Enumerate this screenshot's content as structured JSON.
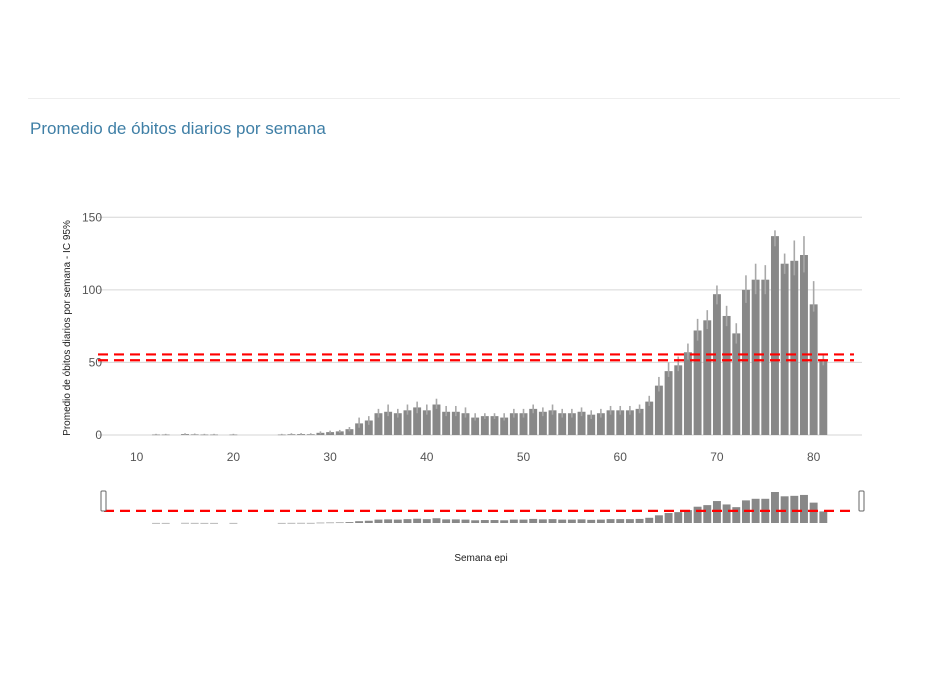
{
  "panel": {
    "title": "Promedio de óbitos diarios por semana"
  },
  "chart_data": {
    "type": "bar",
    "xlabel": "Semana epi",
    "ylabel": "Promedio de óbitos diarios por semana - IC 95%",
    "xlim": [
      6,
      85
    ],
    "ylim": [
      0,
      155
    ],
    "xticks": [
      10,
      20,
      30,
      40,
      50,
      60,
      70,
      80
    ],
    "yticks": [
      0,
      50,
      100,
      150
    ],
    "grid": true,
    "legend": "none",
    "bar_color": "#888888",
    "error_bar_color": "#a8a8a8",
    "threshold_color": "#ff0000",
    "thresholds": [
      51.5,
      55.5
    ],
    "navigator": true,
    "x": [
      12,
      13,
      15,
      16,
      17,
      18,
      20,
      25,
      26,
      27,
      28,
      29,
      30,
      31,
      32,
      33,
      34,
      35,
      36,
      37,
      38,
      39,
      40,
      41,
      42,
      43,
      44,
      45,
      46,
      47,
      48,
      49,
      50,
      51,
      52,
      53,
      54,
      55,
      56,
      57,
      58,
      59,
      60,
      61,
      62,
      63,
      64,
      65,
      66,
      67,
      68,
      69,
      70,
      71,
      72,
      73,
      74,
      75,
      76,
      77,
      78,
      79,
      80,
      81
    ],
    "values": [
      0.3,
      0.3,
      0.6,
      0.4,
      0.3,
      0.3,
      0.3,
      0.3,
      0.5,
      0.6,
      0.5,
      1.5,
      2,
      2.5,
      4,
      8,
      10,
      15,
      16,
      15,
      17,
      19,
      17,
      21,
      16,
      16,
      15,
      12,
      13,
      13,
      12,
      15,
      15,
      18,
      16,
      17,
      15,
      15,
      16,
      14,
      15,
      17,
      17,
      17,
      18,
      23,
      34,
      44,
      48,
      57,
      72,
      79,
      97,
      82,
      70,
      100,
      107,
      107,
      137,
      118,
      120,
      124,
      90,
      51
    ],
    "err_low": [
      0,
      0,
      0,
      0,
      0,
      0,
      0,
      0,
      0,
      0,
      0,
      0.5,
      1,
      1.5,
      2.5,
      5,
      7,
      12,
      13,
      12,
      14,
      15,
      14,
      18,
      13,
      13,
      12,
      10,
      11,
      11,
      10,
      12,
      12,
      15,
      13,
      14,
      12,
      12,
      13,
      11,
      12,
      14,
      14,
      14,
      15,
      20,
      30,
      40,
      44,
      52,
      65,
      73,
      90,
      75,
      63,
      91,
      97,
      97,
      130,
      111,
      110,
      112,
      85,
      48
    ],
    "err_high": [
      0.8,
      0.8,
      1.2,
      1,
      0.8,
      0.8,
      0.8,
      0.8,
      1.2,
      1.3,
      1.2,
      2.5,
      3,
      3.5,
      5.5,
      12,
      13,
      18,
      21,
      18,
      21,
      23,
      21,
      25,
      20,
      20,
      19,
      15,
      15,
      15,
      15,
      18,
      18,
      21,
      19,
      21,
      18,
      18,
      19,
      17,
      18,
      20,
      20,
      20,
      21,
      27,
      40,
      50,
      54,
      63,
      80,
      86,
      103,
      89,
      77,
      110,
      118,
      117,
      141,
      125,
      134,
      137,
      106,
      55
    ]
  }
}
